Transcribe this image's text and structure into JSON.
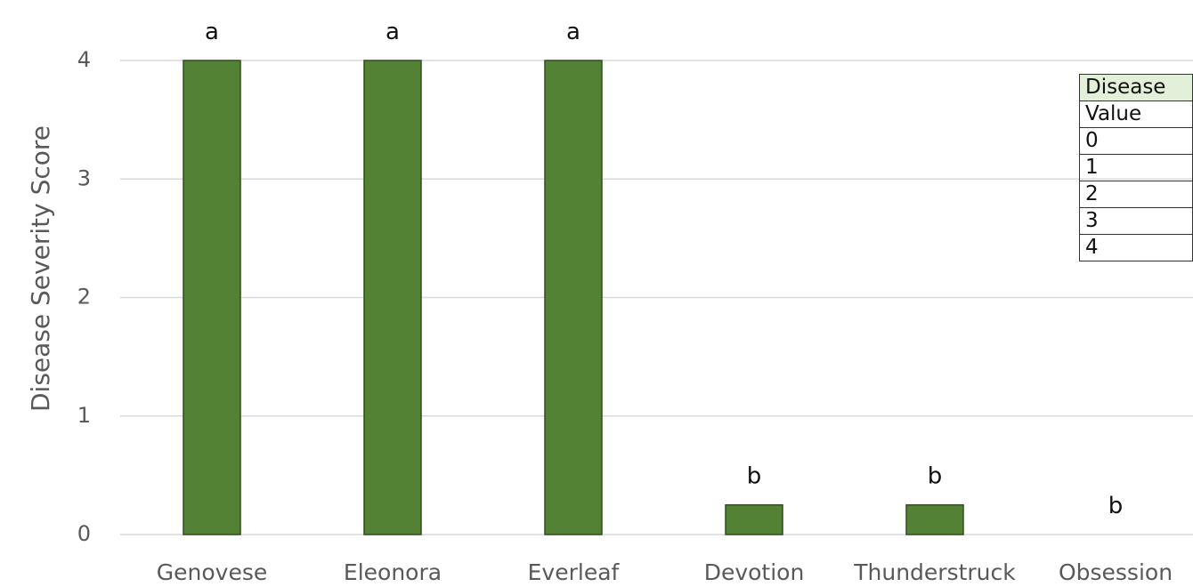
{
  "chart_data": {
    "type": "bar",
    "title": "",
    "xlabel": "",
    "ylabel": "Disease Severity Score",
    "ylim": [
      0,
      4
    ],
    "yticks": [
      0,
      1,
      2,
      3,
      4
    ],
    "grid": true,
    "categories": [
      "Genovese",
      "Eleonora",
      "Everleaf",
      "Devotion",
      "Thunderstruck",
      "Obsession"
    ],
    "values": [
      4,
      4,
      4,
      0.25,
      0.25,
      0
    ],
    "significance_letters": [
      "a",
      "a",
      "a",
      "b",
      "b",
      "b"
    ],
    "bar_color": "#548235"
  },
  "legend_table": {
    "header": "Disease",
    "subheader": "Value",
    "rows": [
      "0",
      "1",
      "2",
      "3",
      "4"
    ]
  }
}
